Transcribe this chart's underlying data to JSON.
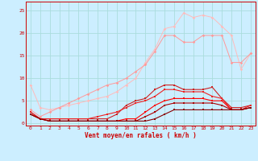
{
  "xlabel": "Vent moyen/en rafales ( km/h )",
  "background_color": "#cceeff",
  "grid_color": "#aadddd",
  "x_values": [
    0,
    1,
    2,
    3,
    4,
    5,
    6,
    7,
    8,
    9,
    10,
    11,
    12,
    13,
    14,
    15,
    16,
    17,
    18,
    19,
    20,
    21,
    22,
    23
  ],
  "lines": [
    {
      "color": "#ffbbbb",
      "linewidth": 0.7,
      "marker": "D",
      "markersize": 1.8,
      "y": [
        8.5,
        3.5,
        3.0,
        3.5,
        4.0,
        4.5,
        5.0,
        5.5,
        6.0,
        7.0,
        8.5,
        10.0,
        13.5,
        16.5,
        21.0,
        21.5,
        24.5,
        23.5,
        24.0,
        23.5,
        21.5,
        19.5,
        12.0,
        15.5
      ]
    },
    {
      "color": "#ff9999",
      "linewidth": 0.7,
      "marker": "D",
      "markersize": 1.8,
      "y": [
        3.0,
        1.5,
        2.5,
        3.5,
        4.5,
        5.5,
        6.5,
        7.5,
        8.5,
        9.0,
        10.0,
        11.5,
        13.0,
        16.0,
        19.5,
        19.5,
        18.0,
        18.0,
        19.5,
        19.5,
        19.5,
        13.5,
        13.5,
        15.5
      ]
    },
    {
      "color": "#cc2222",
      "linewidth": 0.8,
      "marker": "s",
      "markersize": 1.8,
      "y": [
        2.5,
        1.0,
        1.0,
        1.0,
        1.0,
        1.0,
        1.0,
        1.0,
        1.0,
        2.0,
        4.0,
        5.0,
        5.5,
        7.5,
        8.5,
        8.5,
        7.5,
        7.5,
        7.5,
        8.0,
        5.5,
        3.5,
        3.5,
        4.0
      ]
    },
    {
      "color": "#ee2222",
      "linewidth": 0.8,
      "marker": "s",
      "markersize": 1.8,
      "y": [
        2.5,
        1.0,
        1.0,
        1.0,
        1.0,
        1.0,
        1.0,
        1.5,
        2.0,
        2.5,
        3.5,
        4.5,
        5.0,
        6.0,
        7.5,
        7.5,
        7.0,
        7.0,
        7.0,
        6.0,
        5.5,
        3.0,
        3.0,
        4.0
      ]
    },
    {
      "color": "#ff0000",
      "linewidth": 0.8,
      "marker": "s",
      "markersize": 1.8,
      "y": [
        2.0,
        1.0,
        0.5,
        0.5,
        0.5,
        0.5,
        0.5,
        0.5,
        0.5,
        0.5,
        1.0,
        1.0,
        2.5,
        4.0,
        5.0,
        5.5,
        5.5,
        5.5,
        5.5,
        5.0,
        5.0,
        3.0,
        3.0,
        3.5
      ]
    },
    {
      "color": "#aa0000",
      "linewidth": 0.8,
      "marker": "s",
      "markersize": 1.8,
      "y": [
        2.0,
        1.0,
        0.5,
        0.5,
        0.5,
        0.5,
        0.5,
        0.5,
        0.5,
        0.5,
        0.5,
        0.5,
        1.5,
        2.5,
        4.0,
        4.5,
        4.5,
        4.5,
        4.5,
        4.5,
        4.0,
        3.0,
        3.0,
        3.5
      ]
    },
    {
      "color": "#880000",
      "linewidth": 0.8,
      "marker": "s",
      "markersize": 1.8,
      "y": [
        2.0,
        1.0,
        0.5,
        0.5,
        0.5,
        0.5,
        0.5,
        0.5,
        0.5,
        0.5,
        0.5,
        0.5,
        0.5,
        1.0,
        2.0,
        3.0,
        3.0,
        3.0,
        3.0,
        3.0,
        3.0,
        3.0,
        3.0,
        3.5
      ]
    }
  ],
  "ylim": [
    -0.5,
    27
  ],
  "xlim": [
    -0.5,
    23.5
  ],
  "yticks": [
    0,
    5,
    10,
    15,
    20,
    25
  ],
  "xticks": [
    0,
    1,
    2,
    3,
    4,
    5,
    6,
    7,
    8,
    9,
    10,
    11,
    12,
    13,
    14,
    15,
    16,
    17,
    18,
    19,
    20,
    21,
    22,
    23
  ],
  "tick_fontsize": 4.5,
  "xlabel_fontsize": 5.5,
  "ylabel_color": "#cc0000",
  "xlabel_color": "#cc0000",
  "tick_color": "#cc0000",
  "spine_color": "#cc0000"
}
